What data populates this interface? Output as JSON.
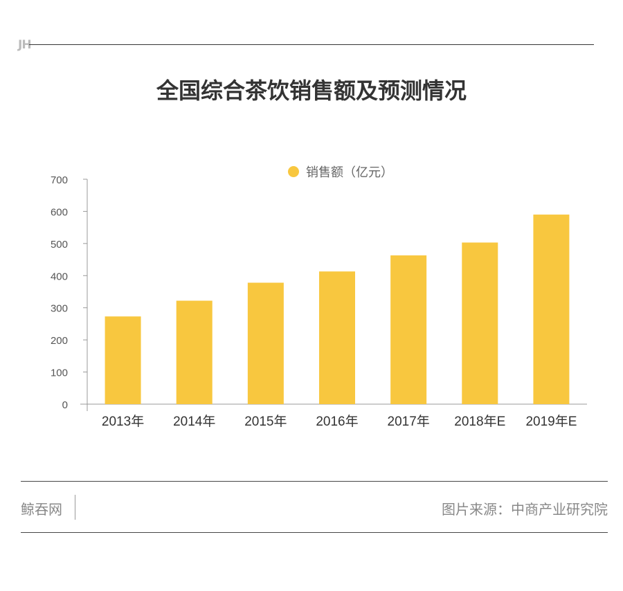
{
  "header": {
    "logo": "JH",
    "title": "全国综合茶饮销售额及预测情况"
  },
  "chart_data": {
    "type": "bar",
    "title": "全国综合茶饮销售额及预测情况",
    "categories": [
      "2013年",
      "2014年",
      "2015年",
      "2016年",
      "2017年",
      "2018年E",
      "2019年E"
    ],
    "series": [
      {
        "name": "销售额（亿元）",
        "values": [
          273,
          322,
          378,
          413,
          463,
          503,
          590
        ]
      }
    ],
    "yticks": [
      "0",
      "100",
      "200",
      "300",
      "400",
      "500",
      "600",
      "700"
    ],
    "ylim": [
      0,
      700
    ],
    "xlabel": "",
    "ylabel": "",
    "legend": "top-center",
    "grid": false,
    "color": "#F8C73F"
  },
  "footer": {
    "brand": "鲸吞网",
    "source": "图片来源：中商产业研究院"
  }
}
